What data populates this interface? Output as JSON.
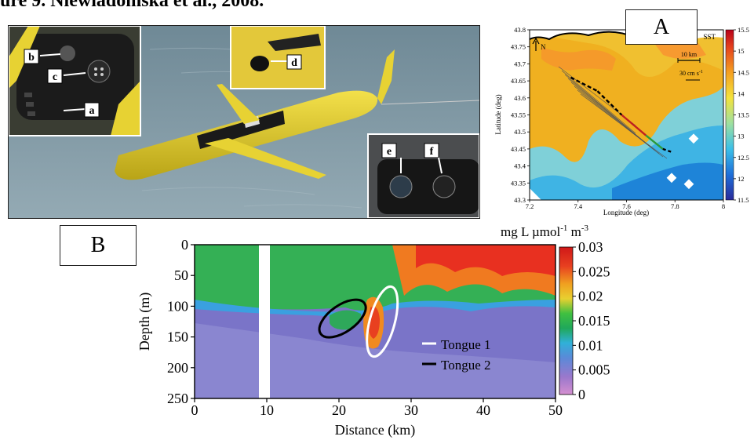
{
  "figure_title": "ure 9. Niewiadomska et al., 2008.",
  "photo": {
    "labels": [
      "a",
      "b",
      "c",
      "d",
      "e",
      "f"
    ]
  },
  "panel_a": {
    "label": "A",
    "map_title": "SST",
    "north_label": "N",
    "scale_km": "10 km",
    "scale_current": "30 cm s",
    "scale_current_sup": "-1",
    "chart_data": {
      "type": "heatmap",
      "xlabel": "Longitude (deg)",
      "ylabel": "Latitude (deg)",
      "xlim": [
        7.2,
        8
      ],
      "ylim": [
        43.3,
        43.8
      ],
      "x_ticks": [
        "7.2",
        "7.4",
        "7.6",
        "7.8",
        "8"
      ],
      "y_ticks": [
        "43.3",
        "43.35",
        "43.4",
        "43.45",
        "43.5",
        "43.55",
        "43.6",
        "43.65",
        "43.7",
        "43.75",
        "43.8"
      ],
      "colorbar_ticks": [
        "11.5",
        "12",
        "12.5",
        "13",
        "13.5",
        "14",
        "14.5",
        "15",
        "15.5"
      ],
      "colorbar_range": [
        11.5,
        15.5
      ],
      "track": [
        [
          7.37,
          43.66
        ],
        [
          7.48,
          43.62
        ],
        [
          7.58,
          43.55
        ],
        [
          7.68,
          43.49
        ],
        [
          7.75,
          43.45
        ],
        [
          7.79,
          43.44
        ]
      ]
    }
  },
  "panel_b": {
    "label": "B",
    "units": "mg L µmol",
    "units_sup1": "-1",
    "units_m": " m",
    "units_sup2": "-3",
    "legend": [
      "Tongue 1",
      "Tongue 2"
    ],
    "chart_data": {
      "type": "heatmap",
      "xlabel": "Distance (km)",
      "ylabel": "Depth (m)",
      "xlim": [
        0,
        50
      ],
      "ylim": [
        250,
        0
      ],
      "x_ticks": [
        "0",
        "10",
        "20",
        "30",
        "40",
        "50"
      ],
      "y_ticks": [
        "0",
        "50",
        "100",
        "150",
        "200",
        "250"
      ],
      "colorbar_ticks": [
        "0",
        "0.005",
        "0.01",
        "0.015",
        "0.02",
        "0.025",
        "0.03"
      ],
      "colorbar_range": [
        0,
        0.03
      ],
      "series": [
        {
          "name": "Tongue 1",
          "center_km": 26,
          "center_depth_m": 125
        },
        {
          "name": "Tongue 2",
          "center_km": 20.5,
          "center_depth_m": 120
        }
      ]
    }
  }
}
